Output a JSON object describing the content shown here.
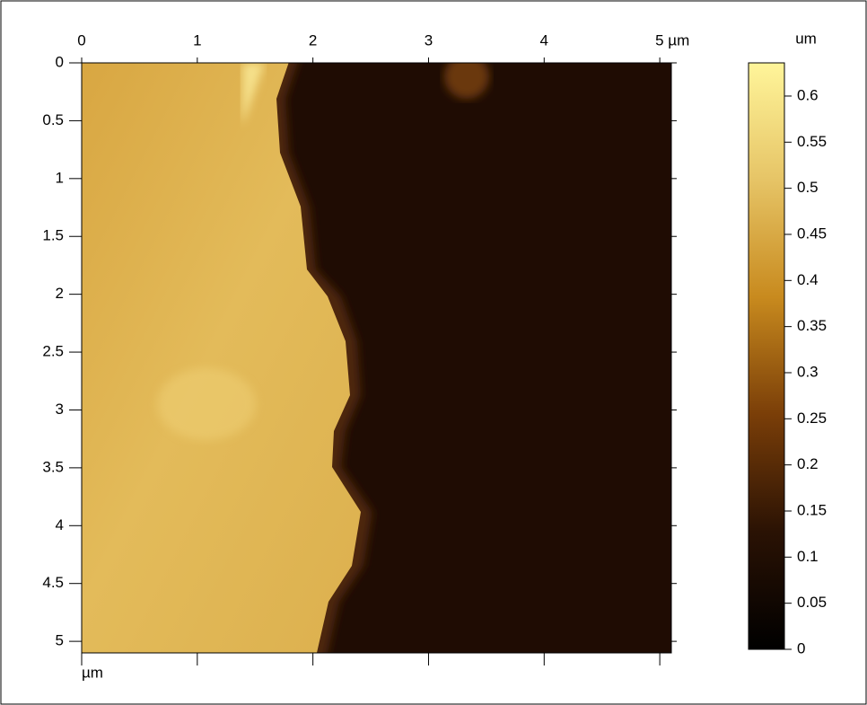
{
  "chart_data": {
    "type": "heightmap",
    "x_unit": "µm",
    "colorbar_unit": "um",
    "xlim": [
      0,
      5.1
    ],
    "ylim": [
      0,
      5.1
    ],
    "xticks": [
      0,
      1,
      2,
      3,
      4,
      {
        "value": 5,
        "label": "5 µm"
      }
    ],
    "yticks": [
      0,
      0.5,
      1,
      1.5,
      2,
      2.5,
      3,
      3.5,
      4,
      4.5,
      5
    ],
    "zlim": [
      0,
      0.636
    ],
    "zticks": [
      0,
      0.05,
      0.1,
      0.15,
      0.2,
      0.25,
      0.3,
      0.35,
      0.4,
      0.45,
      0.5,
      0.55,
      0.6
    ],
    "colormap": [
      "#000000",
      "#2a1204",
      "#7a3e08",
      "#c88a1e",
      "#e6c466",
      "#fff59a"
    ]
  }
}
